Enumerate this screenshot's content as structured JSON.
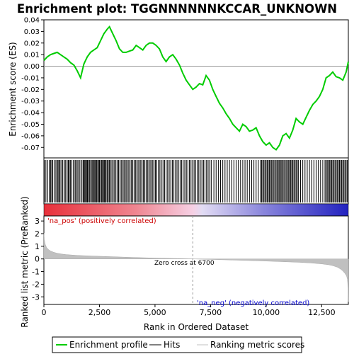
{
  "chart_data": {
    "type": "line",
    "title": "Enrichment plot: TGGNNNNNNKCCAR_UNKNOWN",
    "es_panel": {
      "ylabel": "Enrichment score (ES)",
      "ylim": [
        -0.079,
        0.04
      ],
      "yticks": [
        0.04,
        0.03,
        0.02,
        0.01,
        0.0,
        -0.01,
        -0.02,
        -0.03,
        -0.04,
        -0.05,
        -0.06,
        -0.07
      ],
      "ytick_labels": [
        "0.04",
        "0.03",
        "0.02",
        "0.01",
        "0.00",
        "-0.01",
        "-0.02",
        "-0.03",
        "-0.04",
        "-0.05",
        "-0.06",
        "-0.07"
      ],
      "line_color": "#00cc00",
      "series": [
        {
          "name": "Enrichment profile",
          "x": [
            0,
            150,
            300,
            450,
            600,
            750,
            900,
            1050,
            1200,
            1350,
            1500,
            1650,
            1800,
            1950,
            2100,
            2250,
            2400,
            2550,
            2700,
            2850,
            2950,
            3100,
            3250,
            3400,
            3550,
            3700,
            3850,
            4000,
            4150,
            4300,
            4450,
            4600,
            4750,
            4900,
            5050,
            5200,
            5350,
            5500,
            5650,
            5800,
            5950,
            6100,
            6250,
            6400,
            6550,
            6700,
            6850,
            7000,
            7150,
            7300,
            7450,
            7600,
            7750,
            7900,
            8050,
            8200,
            8350,
            8500,
            8650,
            8800,
            8950,
            9100,
            9250,
            9400,
            9550,
            9700,
            9850,
            10000,
            10150,
            10300,
            10450,
            10600,
            10750,
            10900,
            11050,
            11200,
            11350,
            11500,
            11650,
            11800,
            11950,
            12100,
            12250,
            12400,
            12550,
            12700,
            12850,
            13000,
            13150,
            13300,
            13450,
            13600,
            13700
          ],
          "y": [
            0.005,
            0.008,
            0.01,
            0.011,
            0.012,
            0.01,
            0.008,
            0.006,
            0.003,
            0.001,
            -0.004,
            -0.01,
            0.002,
            0.008,
            0.012,
            0.014,
            0.016,
            0.022,
            0.028,
            0.032,
            0.034,
            0.028,
            0.022,
            0.015,
            0.012,
            0.012,
            0.013,
            0.014,
            0.018,
            0.016,
            0.014,
            0.018,
            0.02,
            0.02,
            0.018,
            0.015,
            0.008,
            0.004,
            0.008,
            0.01,
            0.006,
            0.001,
            -0.006,
            -0.012,
            -0.016,
            -0.02,
            -0.018,
            -0.015,
            -0.016,
            -0.008,
            -0.012,
            -0.02,
            -0.026,
            -0.032,
            -0.036,
            -0.041,
            -0.045,
            -0.05,
            -0.053,
            -0.056,
            -0.05,
            -0.052,
            -0.056,
            -0.055,
            -0.053,
            -0.06,
            -0.065,
            -0.068,
            -0.066,
            -0.07,
            -0.072,
            -0.068,
            -0.06,
            -0.058,
            -0.062,
            -0.055,
            -0.045,
            -0.048,
            -0.05,
            -0.044,
            -0.038,
            -0.033,
            -0.03,
            -0.026,
            -0.02,
            -0.01,
            -0.008,
            -0.005,
            -0.009,
            -0.01,
            -0.012,
            -0.005,
            0.004
          ]
        }
      ]
    },
    "ranked_panel": {
      "ylabel": "Ranked list metric (PreRanked)",
      "ylim": [
        -3.6,
        3.4
      ],
      "yticks": [
        3,
        2,
        1,
        0,
        -1,
        -2,
        -3
      ],
      "ytick_labels": [
        "3",
        "2",
        "1",
        "0",
        "-1",
        "-2",
        "-3"
      ],
      "fill_color": "#c0c0c0",
      "series": [
        {
          "name": "Ranking metric scores",
          "x": [
            0,
            20,
            60,
            120,
            200,
            300,
            450,
            600,
            800,
            1000,
            1500,
            2000,
            3000,
            4000,
            5000,
            6000,
            6700,
            7500,
            8500,
            9500,
            10500,
            11500,
            12000,
            12500,
            12800,
            13000,
            13200,
            13350,
            13450,
            13550,
            13620,
            13660,
            13690,
            13700
          ],
          "y": [
            2.05,
            1.5,
            1.15,
            0.9,
            0.75,
            0.62,
            0.52,
            0.45,
            0.39,
            0.34,
            0.28,
            0.24,
            0.18,
            0.12,
            0.07,
            0.03,
            0.0,
            -0.04,
            -0.09,
            -0.14,
            -0.2,
            -0.27,
            -0.32,
            -0.39,
            -0.46,
            -0.53,
            -0.65,
            -0.8,
            -0.95,
            -1.15,
            -1.35,
            -1.6,
            -2.3,
            -3.4
          ]
        }
      ],
      "zero_cross_label": "Zero cross at 6700",
      "zero_cross": 6700,
      "pos_label": "'na_pos' (positively correlated)",
      "neg_label": "'na_neg' (negatively correlated)",
      "pos_color": "#cc0000",
      "neg_color": "#0000cc"
    },
    "xaxis": {
      "label": "Rank in Ordered Dataset",
      "xlim": [
        0,
        13700
      ],
      "xticks": [
        0,
        2500,
        5000,
        7500,
        10000,
        12500
      ],
      "xtick_labels": [
        "0",
        "2,500",
        "5,000",
        "7,500",
        "10,000",
        "12,500"
      ]
    },
    "hits": [
      20,
      90,
      170,
      240,
      300,
      350,
      400,
      470,
      540,
      600,
      640,
      690,
      730,
      800,
      850,
      930,
      980,
      1050,
      1100,
      1140,
      1190,
      1250,
      1320,
      1400,
      1440,
      1500,
      1560,
      1620,
      1700,
      1760,
      1800,
      1840,
      1880,
      1920,
      1960,
      2000,
      2050,
      2100,
      2160,
      2200,
      2250,
      2290,
      2330,
      2370,
      2420,
      2460,
      2500,
      2550,
      2600,
      2640,
      2680,
      2720,
      2760,
      2800,
      2850,
      2900,
      2950,
      3000,
      3060,
      3120,
      3180,
      3240,
      3300,
      3360,
      3420,
      3480,
      3540,
      3600,
      3650,
      3700,
      3760,
      3820,
      3880,
      3940,
      4000,
      4060,
      4120,
      4180,
      4240,
      4300,
      4360,
      4420,
      4480,
      4540,
      4600,
      4660,
      4720,
      4780,
      4840,
      4900,
      4960,
      5020,
      5080,
      5150,
      5220,
      5290,
      5360,
      5430,
      5500,
      5570,
      5640,
      5710,
      5780,
      5850,
      5920,
      5990,
      6060,
      6130,
      6200,
      6270,
      6340,
      6410,
      6480,
      6550,
      6620,
      6690,
      6760,
      6830,
      6900,
      6970,
      7040,
      7110,
      7180,
      7250,
      7320,
      7390,
      7460,
      7530,
      7650,
      7750,
      7850,
      7950,
      8050,
      8150,
      8250,
      8350,
      8450,
      8550,
      8650,
      8750,
      8850,
      8950,
      9050,
      9150,
      9250,
      9350,
      9450,
      9550,
      9650,
      9750,
      9800,
      9850,
      9900,
      9950,
      10000,
      10050,
      10100,
      10150,
      10200,
      10250,
      10300,
      10350,
      10400,
      10450,
      10500,
      10550,
      10600,
      10650,
      10700,
      10750,
      10800,
      10850,
      10900,
      10950,
      11000,
      11050,
      11100,
      11150,
      11200,
      11250,
      11300,
      11350,
      11400,
      11450,
      11550,
      11650,
      11750,
      11850,
      11950,
      12050,
      12150,
      12250,
      12350,
      12450,
      12550,
      12650,
      12700,
      12750,
      12800,
      12850,
      12900,
      12950,
      13000,
      13050,
      13100,
      13150,
      13200,
      13250,
      13300,
      13350,
      13400,
      13450,
      13500,
      13550,
      13600,
      13650
    ],
    "legend": [
      {
        "label": "Enrichment profile",
        "color": "#00cc00",
        "kind": "line"
      },
      {
        "label": "Hits",
        "color": "#000000",
        "kind": "line"
      },
      {
        "label": "Ranking metric scores",
        "color": "#c0c0c0",
        "kind": "line"
      }
    ]
  }
}
